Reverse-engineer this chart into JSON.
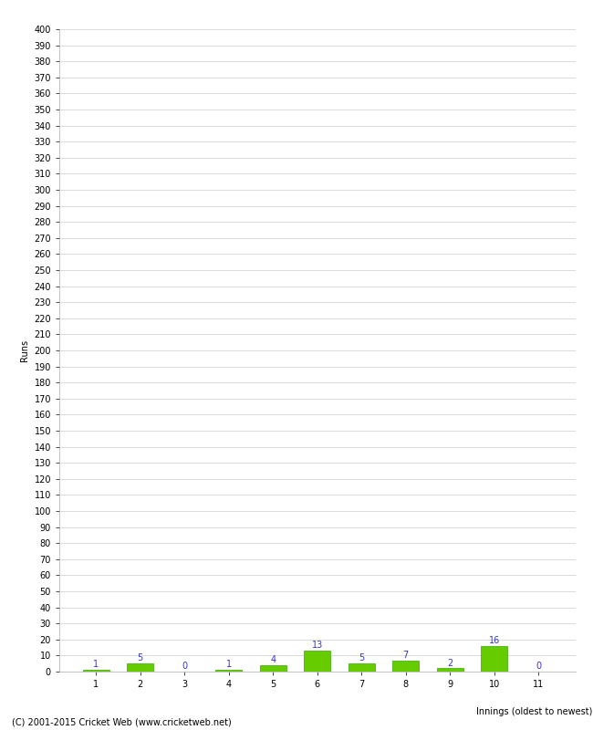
{
  "innings": [
    1,
    2,
    3,
    4,
    5,
    6,
    7,
    8,
    9,
    10,
    11
  ],
  "runs": [
    1,
    5,
    0,
    1,
    4,
    13,
    5,
    7,
    2,
    16,
    0
  ],
  "bar_color": "#66cc00",
  "bar_edge_color": "#33aa00",
  "label_color": "#3333cc",
  "xlabel": "Innings (oldest to newest)",
  "ylabel": "Runs",
  "ylim_min": 0,
  "ylim_max": 400,
  "ytick_step": 10,
  "grid_color": "#cccccc",
  "background_color": "#ffffff",
  "footer": "(C) 2001-2015 Cricket Web (www.cricketweb.net)",
  "label_fontsize": 7,
  "axis_fontsize": 7,
  "footer_fontsize": 7,
  "ylabel_fontsize": 7
}
